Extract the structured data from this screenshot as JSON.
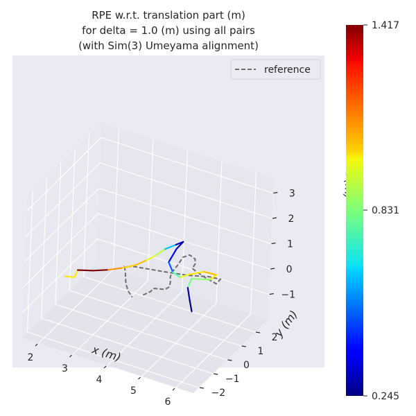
{
  "chart_data": {
    "type": "line",
    "projection": "3d",
    "title_lines": [
      "RPE w.r.t. translation part (m)",
      "for delta = 1.0 (m) using all pairs",
      "(with Sim(3) Umeyama alignment)"
    ],
    "xlabel": "x (m)",
    "ylabel": "y (m)",
    "zlabel": "z (m)",
    "xticks": [
      "2",
      "3",
      "4",
      "5",
      "6"
    ],
    "yticks": [
      "−2",
      "−1",
      "0",
      "1",
      "2"
    ],
    "zticks": [
      "−1",
      "0",
      "1",
      "2",
      "3"
    ],
    "xlim": [
      1.5,
      6.5
    ],
    "ylim": [
      -2.4,
      2.9
    ],
    "zlim": [
      -2.0,
      3.6
    ],
    "grid": true,
    "legend": {
      "position": "top-right",
      "entries": [
        "reference"
      ]
    },
    "series": [
      {
        "name": "reference",
        "style": "dashed",
        "color": "#6e6e6e",
        "points": [
          [
            3.35,
            1.7,
            -1.75
          ],
          [
            3.6,
            1.6,
            -1.45
          ],
          [
            3.75,
            1.4,
            -1.15
          ],
          [
            4.0,
            1.2,
            -0.95
          ],
          [
            4.25,
            1.0,
            -0.75
          ],
          [
            4.45,
            0.8,
            -0.45
          ],
          [
            4.55,
            0.6,
            -0.1
          ],
          [
            4.6,
            0.45,
            0.2
          ],
          [
            4.7,
            0.3,
            0.5
          ],
          [
            4.85,
            0.35,
            0.85
          ],
          [
            4.9,
            0.55,
            1.05
          ],
          [
            5.0,
            0.8,
            1.05
          ],
          [
            5.1,
            0.95,
            0.85
          ],
          [
            5.05,
            1.1,
            0.55
          ],
          [
            4.95,
            1.15,
            0.3
          ],
          [
            5.25,
            1.25,
            0.05
          ],
          [
            5.6,
            1.3,
            -0.1
          ],
          [
            5.75,
            1.2,
            0.2
          ],
          [
            5.5,
            1.0,
            0.3
          ],
          [
            5.0,
            0.7,
            0.3
          ],
          [
            4.4,
            0.4,
            0.35
          ],
          [
            3.7,
            0.1,
            0.4
          ],
          [
            3.45,
            0.0,
            0.35
          ],
          [
            3.4,
            0.2,
            -0.05
          ],
          [
            3.35,
            0.4,
            -0.6
          ],
          [
            3.35,
            0.6,
            -1.0
          ],
          [
            3.35,
            0.9,
            -1.4
          ]
        ]
      }
    ],
    "rpe": {
      "label": "",
      "cmap": "jet",
      "vmin": 0.245,
      "vmax": 1.417,
      "path": [
        [
          1.9,
          -0.4,
          -0.5
        ],
        [
          2.15,
          -0.35,
          -0.45
        ],
        [
          2.2,
          -0.25,
          -0.2
        ],
        [
          2.6,
          -0.15,
          -0.1
        ],
        [
          3.0,
          -0.05,
          0.05
        ],
        [
          3.35,
          0.1,
          0.2
        ],
        [
          3.65,
          0.25,
          0.35
        ],
        [
          3.9,
          0.45,
          0.55
        ],
        [
          4.1,
          0.6,
          0.75
        ],
        [
          4.3,
          0.75,
          1.0
        ],
        [
          4.55,
          0.9,
          1.2
        ],
        [
          4.7,
          1.05,
          1.3
        ],
        [
          4.55,
          0.95,
          1.0
        ],
        [
          4.4,
          0.8,
          0.5
        ],
        [
          4.55,
          0.75,
          0.2
        ],
        [
          4.75,
          0.8,
          0.05
        ],
        [
          4.95,
          0.9,
          0.2
        ],
        [
          5.3,
          1.1,
          0.35
        ],
        [
          5.6,
          1.3,
          0.25
        ],
        [
          5.45,
          1.2,
          0.05
        ],
        [
          5.0,
          1.0,
          0.0
        ],
        [
          4.9,
          1.0,
          -0.4
        ],
        [
          4.95,
          1.05,
          -0.9
        ],
        [
          5.0,
          1.1,
          -1.35
        ]
      ],
      "values": [
        1.0,
        1.0,
        1.417,
        1.417,
        1.1,
        1.03,
        1.05,
        0.95,
        0.9,
        0.62,
        0.3,
        0.3,
        0.4,
        0.5,
        0.78,
        0.95,
        1.0,
        1.05,
        1.0,
        0.85,
        0.82,
        0.3,
        0.25
      ]
    }
  }
}
